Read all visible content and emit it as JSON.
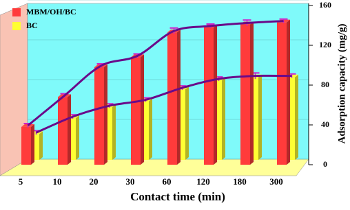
{
  "chart_data": {
    "type": "bar3d",
    "categories": [
      "5",
      "10",
      "20",
      "30",
      "60",
      "120",
      "180",
      "300"
    ],
    "series": [
      {
        "name": "MBM/OH/BC",
        "color": "#ff3b3b",
        "values": [
          38,
          68,
          98,
          108,
          133,
          138,
          141,
          143
        ],
        "errors": [
          2,
          2,
          2,
          2,
          3,
          2,
          3,
          2
        ]
      },
      {
        "name": "BC",
        "color": "#ffff33",
        "values": [
          26,
          42,
          53,
          59,
          71,
          80,
          83,
          83
        ],
        "errors": [
          2,
          2,
          2,
          2,
          2,
          2,
          3,
          2
        ]
      }
    ],
    "line_color": "#6a0a8a",
    "error_color": "#cc22cc",
    "xlabel": "Contact time (min)",
    "ylabel": "Adsorption capacity (mg/g)",
    "ylim": [
      0,
      160
    ],
    "yticks": [
      0,
      40,
      80,
      120,
      160
    ],
    "grid": true,
    "legend": "upper left"
  }
}
